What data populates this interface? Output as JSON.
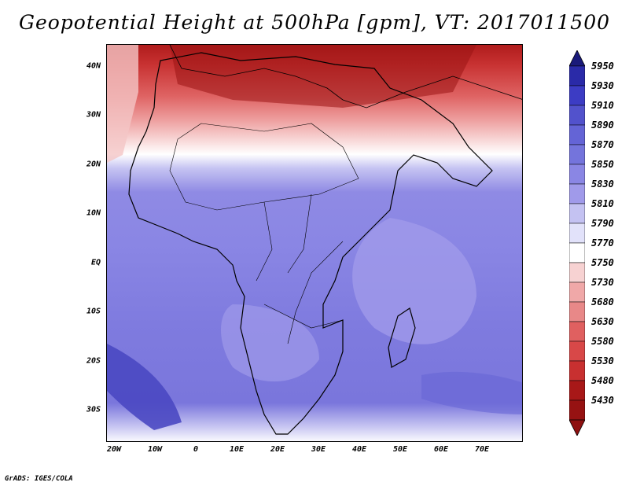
{
  "title": "Geopotential Height at 500hPa [gpm], VT: 2017011500",
  "lat_labels": [
    "40N",
    "30N",
    "20N",
    "10N",
    "EQ",
    "10S",
    "20S",
    "30S"
  ],
  "lon_labels": [
    "20W",
    "10W",
    "0",
    "10E",
    "20E",
    "30E",
    "40E",
    "50E",
    "60E",
    "70E"
  ],
  "colorbar": {
    "levels": [
      "5950",
      "5930",
      "5910",
      "5890",
      "5870",
      "5850",
      "5830",
      "5810",
      "5790",
      "5770",
      "5750",
      "5730",
      "5680",
      "5630",
      "5580",
      "5530",
      "5480",
      "5430"
    ],
    "colors": [
      "#1a1a7a",
      "#2a2aa8",
      "#3c3cc4",
      "#5252cc",
      "#6464d6",
      "#7474dc",
      "#8a86e4",
      "#a09aea",
      "#c4c2f2",
      "#e2e2fa",
      "#ffffff",
      "#f7d2d2",
      "#f0a8a8",
      "#e88888",
      "#e06060",
      "#d84848",
      "#c83030",
      "#a81818",
      "#8e1010"
    ]
  },
  "footer": "GrADS: IGES/COLA"
}
